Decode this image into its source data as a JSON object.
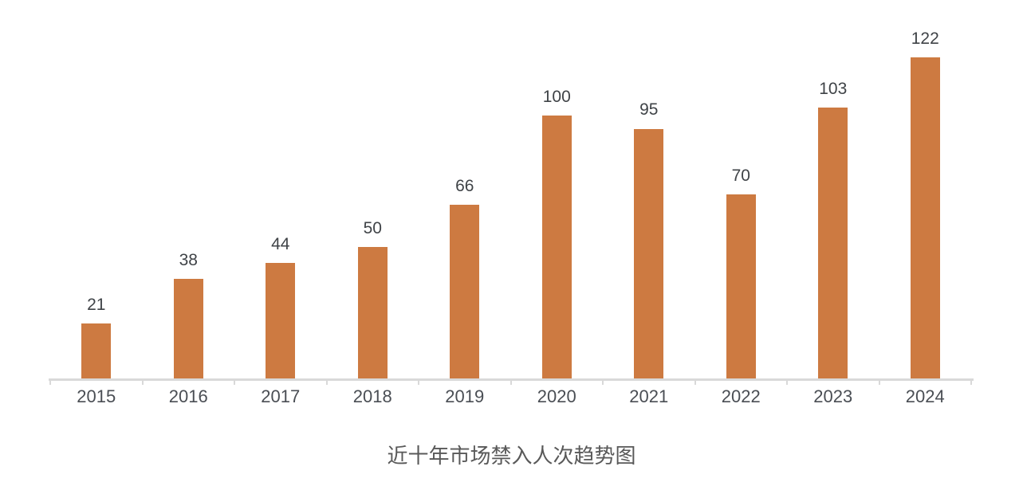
{
  "chart_data": {
    "type": "bar",
    "title": "近十年市场禁入人次趋势图",
    "categories": [
      "2015",
      "2016",
      "2017",
      "2018",
      "2019",
      "2020",
      "2021",
      "2022",
      "2023",
      "2024"
    ],
    "values": [
      21,
      38,
      44,
      50,
      66,
      100,
      95,
      70,
      103,
      122
    ],
    "xlabel": "",
    "ylabel": "",
    "ylim": [
      0,
      130
    ],
    "grid": "off",
    "legend": "none",
    "value_labels_shown": true,
    "bar_color": "#cd7a41"
  },
  "colors": {
    "bar": "#cd7a41",
    "value_label_text": "#3f4347",
    "x_tick_label_text": "#4a4e54",
    "axis_line": "#d9d9d9",
    "title_text": "#595959",
    "background": "#ffffff"
  }
}
